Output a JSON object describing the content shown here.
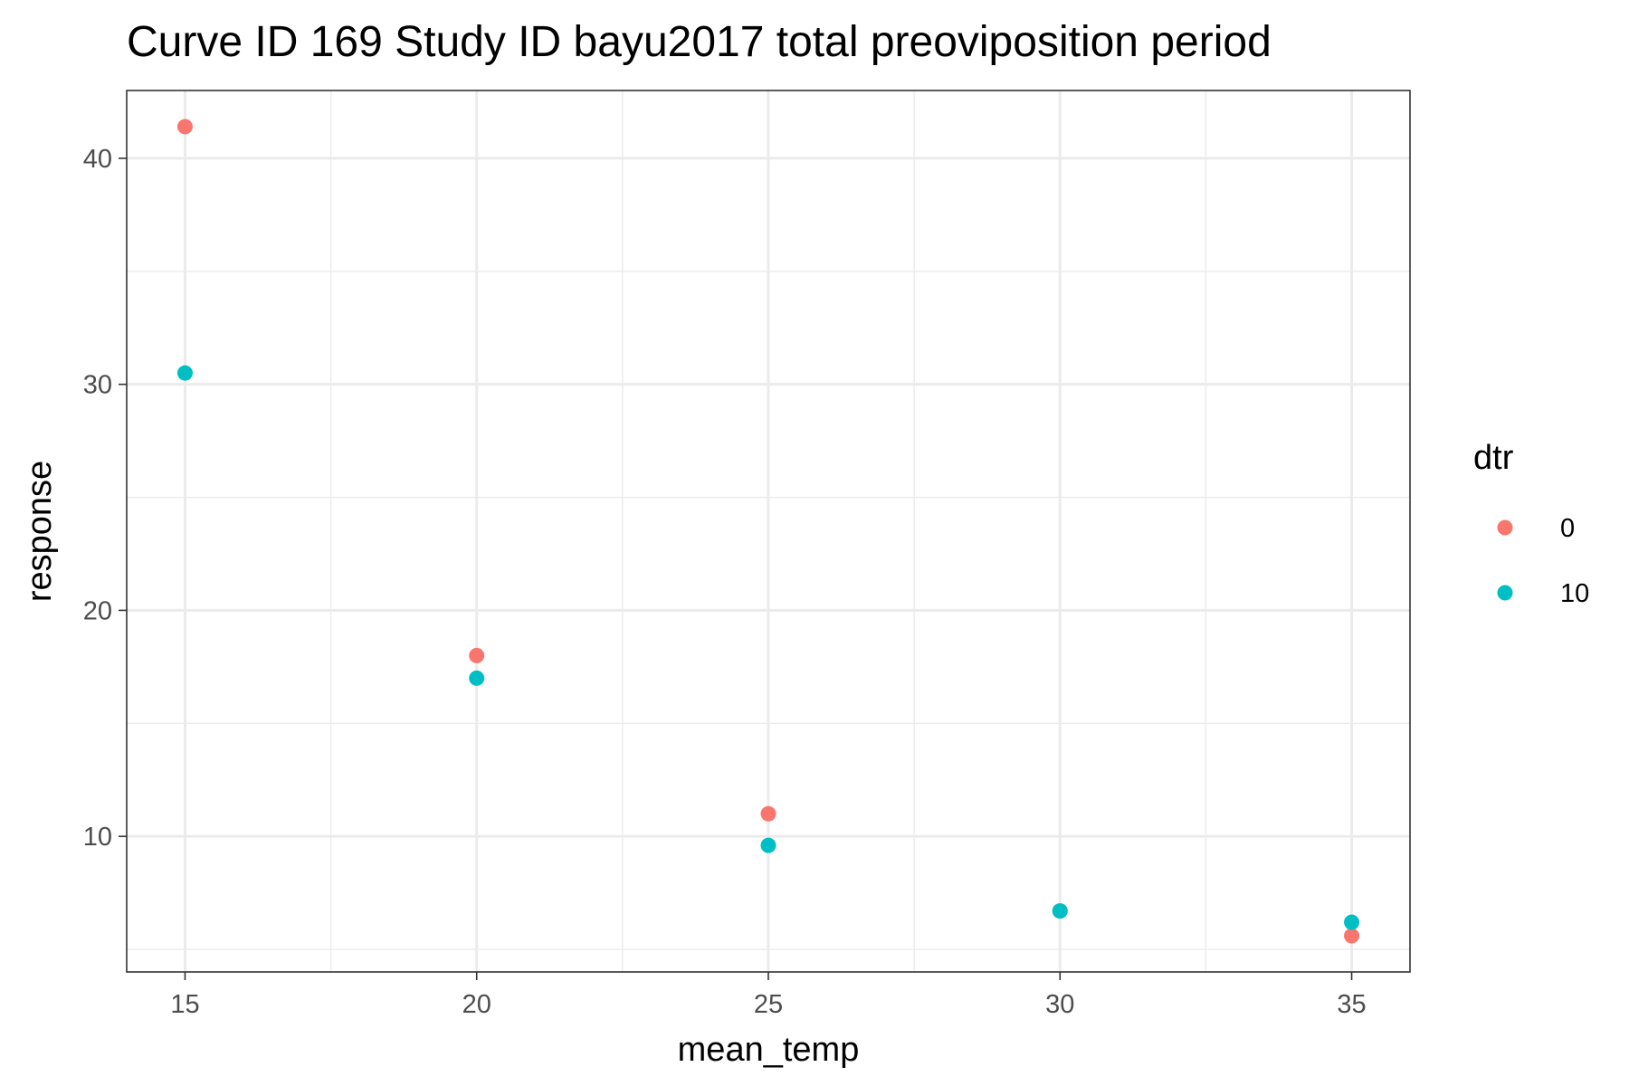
{
  "chart_data": {
    "type": "scatter",
    "title": "Curve ID 169 Study ID bayu2017 total preoviposition period",
    "xlabel": "mean_temp",
    "ylabel": "response",
    "xlim": [
      14.0,
      36.0
    ],
    "ylim": [
      4.0,
      43.0
    ],
    "x_ticks": [
      15,
      20,
      25,
      30,
      35
    ],
    "x_tick_labels": [
      "15",
      "20",
      "25",
      "30",
      "35"
    ],
    "x_minor": [
      17.5,
      22.5,
      27.5,
      32.5
    ],
    "y_ticks": [
      10,
      20,
      30,
      40
    ],
    "y_tick_labels": [
      "10",
      "20",
      "30",
      "40"
    ],
    "y_minor": [
      5,
      15,
      25,
      35
    ],
    "grid": true,
    "legend": {
      "title": "dtr",
      "position": "right"
    },
    "series": [
      {
        "name": "0",
        "color": "#F8766D",
        "points": [
          {
            "x": 15,
            "y": 41.4
          },
          {
            "x": 20,
            "y": 18.0
          },
          {
            "x": 25,
            "y": 11.0
          },
          {
            "x": 30,
            "y": 6.7
          },
          {
            "x": 35,
            "y": 5.6
          }
        ]
      },
      {
        "name": "10",
        "color": "#00BFC4",
        "points": [
          {
            "x": 15,
            "y": 30.5
          },
          {
            "x": 20,
            "y": 17.0
          },
          {
            "x": 25,
            "y": 9.6
          },
          {
            "x": 30,
            "y": 6.7
          },
          {
            "x": 35,
            "y": 6.2
          }
        ]
      }
    ]
  }
}
